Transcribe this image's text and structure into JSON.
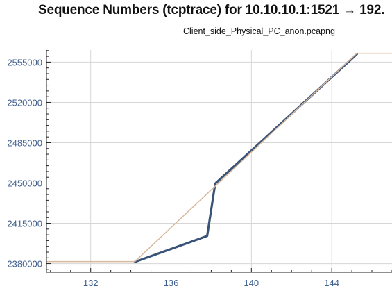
{
  "chart_data": {
    "type": "line",
    "title": "Sequence Numbers (tcptrace) for 10.10.10.1:1521 → 192.",
    "subtitle": "Client_side_Physical_PC_anon.pcapng",
    "xlabel": "",
    "ylabel": "",
    "xlim": [
      129.8,
      147.0
    ],
    "ylim": [
      2372500,
      2565500
    ],
    "x_ticks": [
      132,
      136,
      140,
      144
    ],
    "y_ticks": [
      2380000,
      2415000,
      2450000,
      2485000,
      2520000,
      2555000
    ],
    "grid": true,
    "legend": "none",
    "colors": {
      "sequence": "#3a5478",
      "window": "#d9b99b",
      "grid": "#d6d6d6",
      "tick_text": "#3f5f8f"
    },
    "series": [
      {
        "role": "sequence",
        "x": [
          134.2,
          137.8,
          138.2,
          145.1,
          145.25
        ],
        "y": [
          2381500,
          2404000,
          2449500,
          2559500,
          2562000
        ]
      },
      {
        "role": "window",
        "x": [
          129.8,
          134.2,
          145.25,
          147.0
        ],
        "y": [
          2381800,
          2381800,
          2562700,
          2562700
        ]
      }
    ]
  }
}
